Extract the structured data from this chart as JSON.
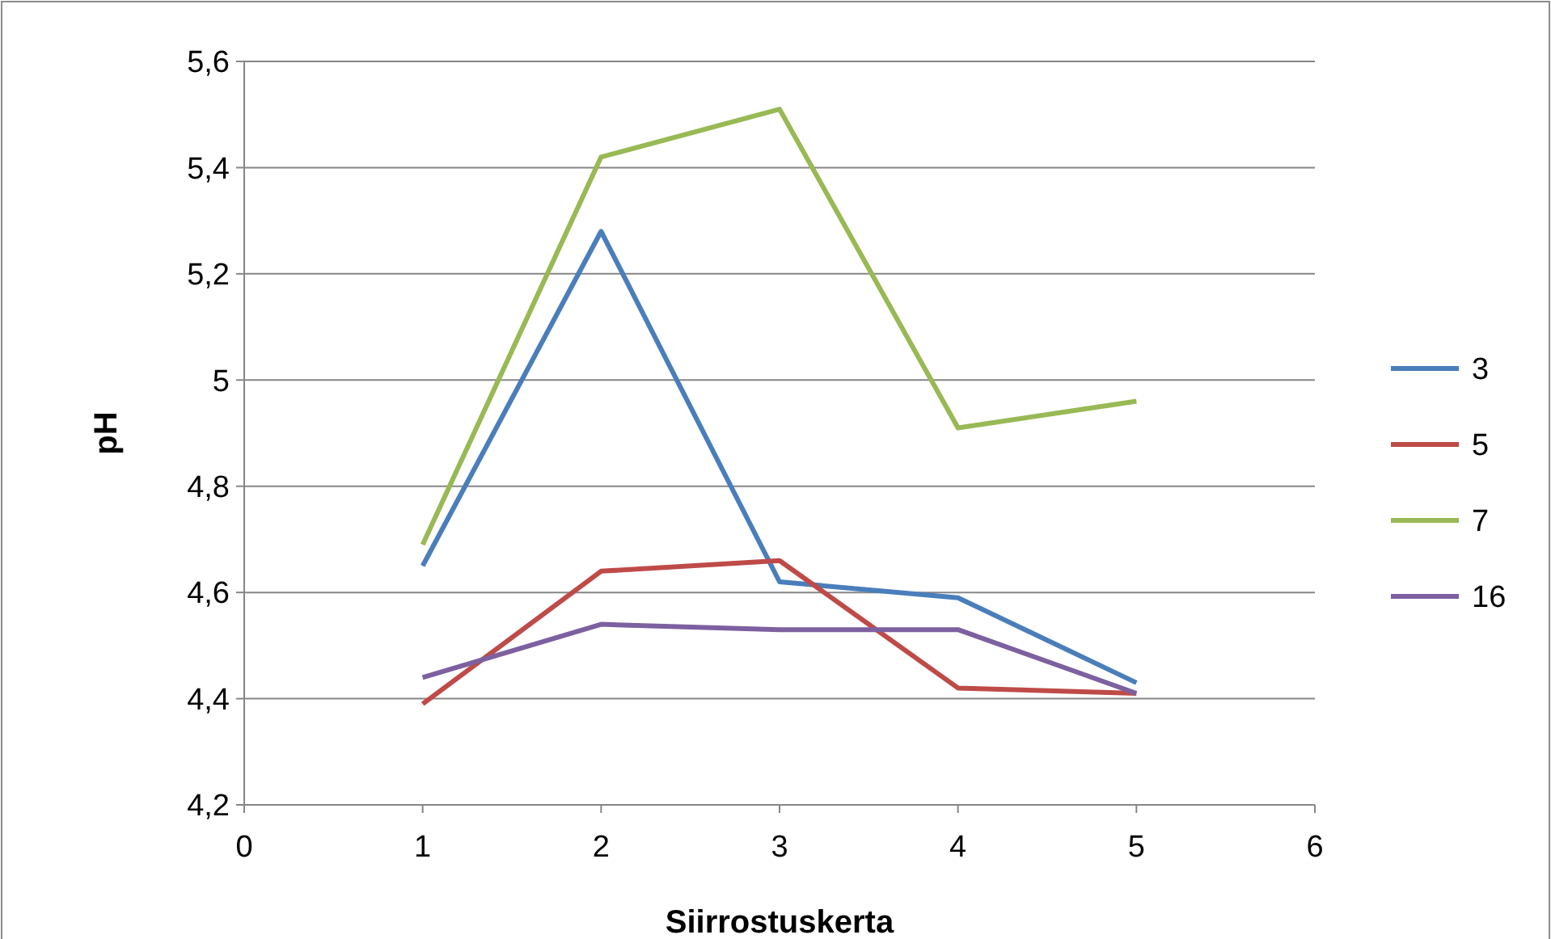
{
  "chart_data": {
    "type": "line",
    "xlabel": "Siirrostuskerta",
    "ylabel": "pH",
    "xlim": [
      0,
      6
    ],
    "xticks": [
      0,
      1,
      2,
      3,
      4,
      5,
      6
    ],
    "ylim": [
      4.2,
      5.6
    ],
    "yticks": [
      {
        "value": 4.2,
        "label": "4,2"
      },
      {
        "value": 4.4,
        "label": "4,4"
      },
      {
        "value": 4.6,
        "label": "4,6"
      },
      {
        "value": 4.8,
        "label": "4,8"
      },
      {
        "value": 5,
        "label": "5"
      },
      {
        "value": 5.2,
        "label": "5,2"
      },
      {
        "value": 5.4,
        "label": "5,4"
      },
      {
        "value": 5.6,
        "label": "5,6"
      }
    ],
    "grid": "y",
    "legend": "right",
    "marker": "none",
    "x": [
      1,
      2,
      3,
      4,
      5
    ],
    "series": [
      {
        "name": "3",
        "color": "#4a7ebb",
        "values": [
          4.65,
          5.28,
          4.62,
          4.59,
          4.43
        ]
      },
      {
        "name": "5",
        "color": "#be4b48",
        "values": [
          4.39,
          4.64,
          4.66,
          4.42,
          4.41
        ]
      },
      {
        "name": "7",
        "color": "#98b954",
        "values": [
          4.69,
          5.42,
          5.51,
          4.91,
          4.96
        ]
      },
      {
        "name": "16",
        "color": "#7d60a0",
        "values": [
          4.44,
          4.54,
          4.53,
          4.53,
          4.41
        ]
      }
    ]
  }
}
